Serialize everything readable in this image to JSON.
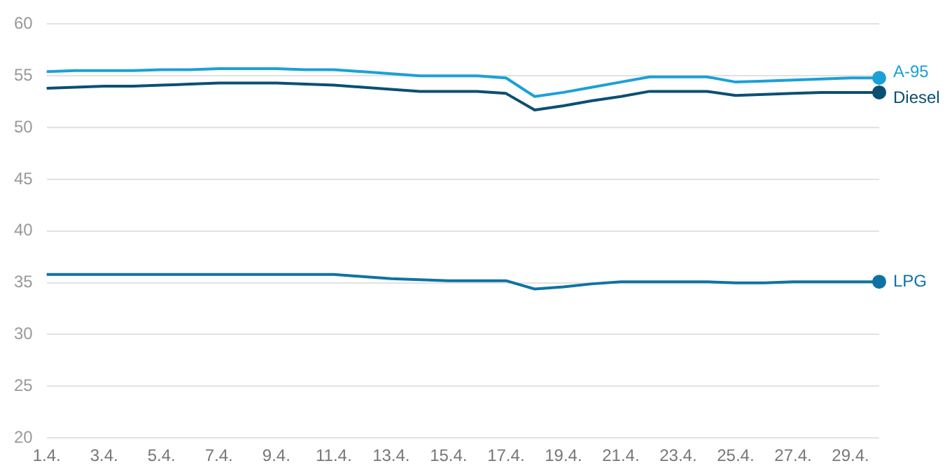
{
  "chart_data": {
    "type": "line",
    "categories": [
      "1.4.",
      null,
      "3.4.",
      null,
      "5.4.",
      null,
      "7.4.",
      null,
      "9.4.",
      null,
      "11.4.",
      null,
      "13.4.",
      null,
      "15.4.",
      null,
      "17.4.",
      null,
      "19.4.",
      null,
      "21.4.",
      null,
      "23.4.",
      null,
      "25.4.",
      null,
      "27.4.",
      null,
      "29.4.",
      null
    ],
    "series": [
      {
        "name": "A-95",
        "color": "#1ba1d6",
        "values": [
          55.4,
          55.5,
          55.5,
          55.5,
          55.6,
          55.6,
          55.7,
          55.7,
          55.7,
          55.6,
          55.6,
          55.4,
          55.2,
          55.0,
          55.0,
          55.0,
          54.8,
          53.0,
          53.4,
          53.9,
          54.4,
          54.9,
          54.9,
          54.9,
          54.4,
          54.5,
          54.6,
          54.7,
          54.8,
          54.8
        ]
      },
      {
        "name": "Diesel",
        "color": "#0b4f74",
        "values": [
          53.8,
          53.9,
          54.0,
          54.0,
          54.1,
          54.2,
          54.3,
          54.3,
          54.3,
          54.2,
          54.1,
          53.9,
          53.7,
          53.5,
          53.5,
          53.5,
          53.3,
          51.7,
          52.1,
          52.6,
          53.0,
          53.5,
          53.5,
          53.5,
          53.1,
          53.2,
          53.3,
          53.4,
          53.4,
          53.4
        ]
      },
      {
        "name": "LPG",
        "color": "#0e73a3",
        "values": [
          35.8,
          35.8,
          35.8,
          35.8,
          35.8,
          35.8,
          35.8,
          35.8,
          35.8,
          35.8,
          35.8,
          35.6,
          35.4,
          35.3,
          35.2,
          35.2,
          35.2,
          34.4,
          34.6,
          34.9,
          35.1,
          35.1,
          35.1,
          35.1,
          35.0,
          35.0,
          35.1,
          35.1,
          35.1,
          35.1
        ]
      }
    ],
    "ylim": [
      20,
      60
    ],
    "yticks": [
      20,
      25,
      30,
      35,
      40,
      45,
      50,
      55,
      60
    ],
    "grid": "y",
    "legend": false
  }
}
